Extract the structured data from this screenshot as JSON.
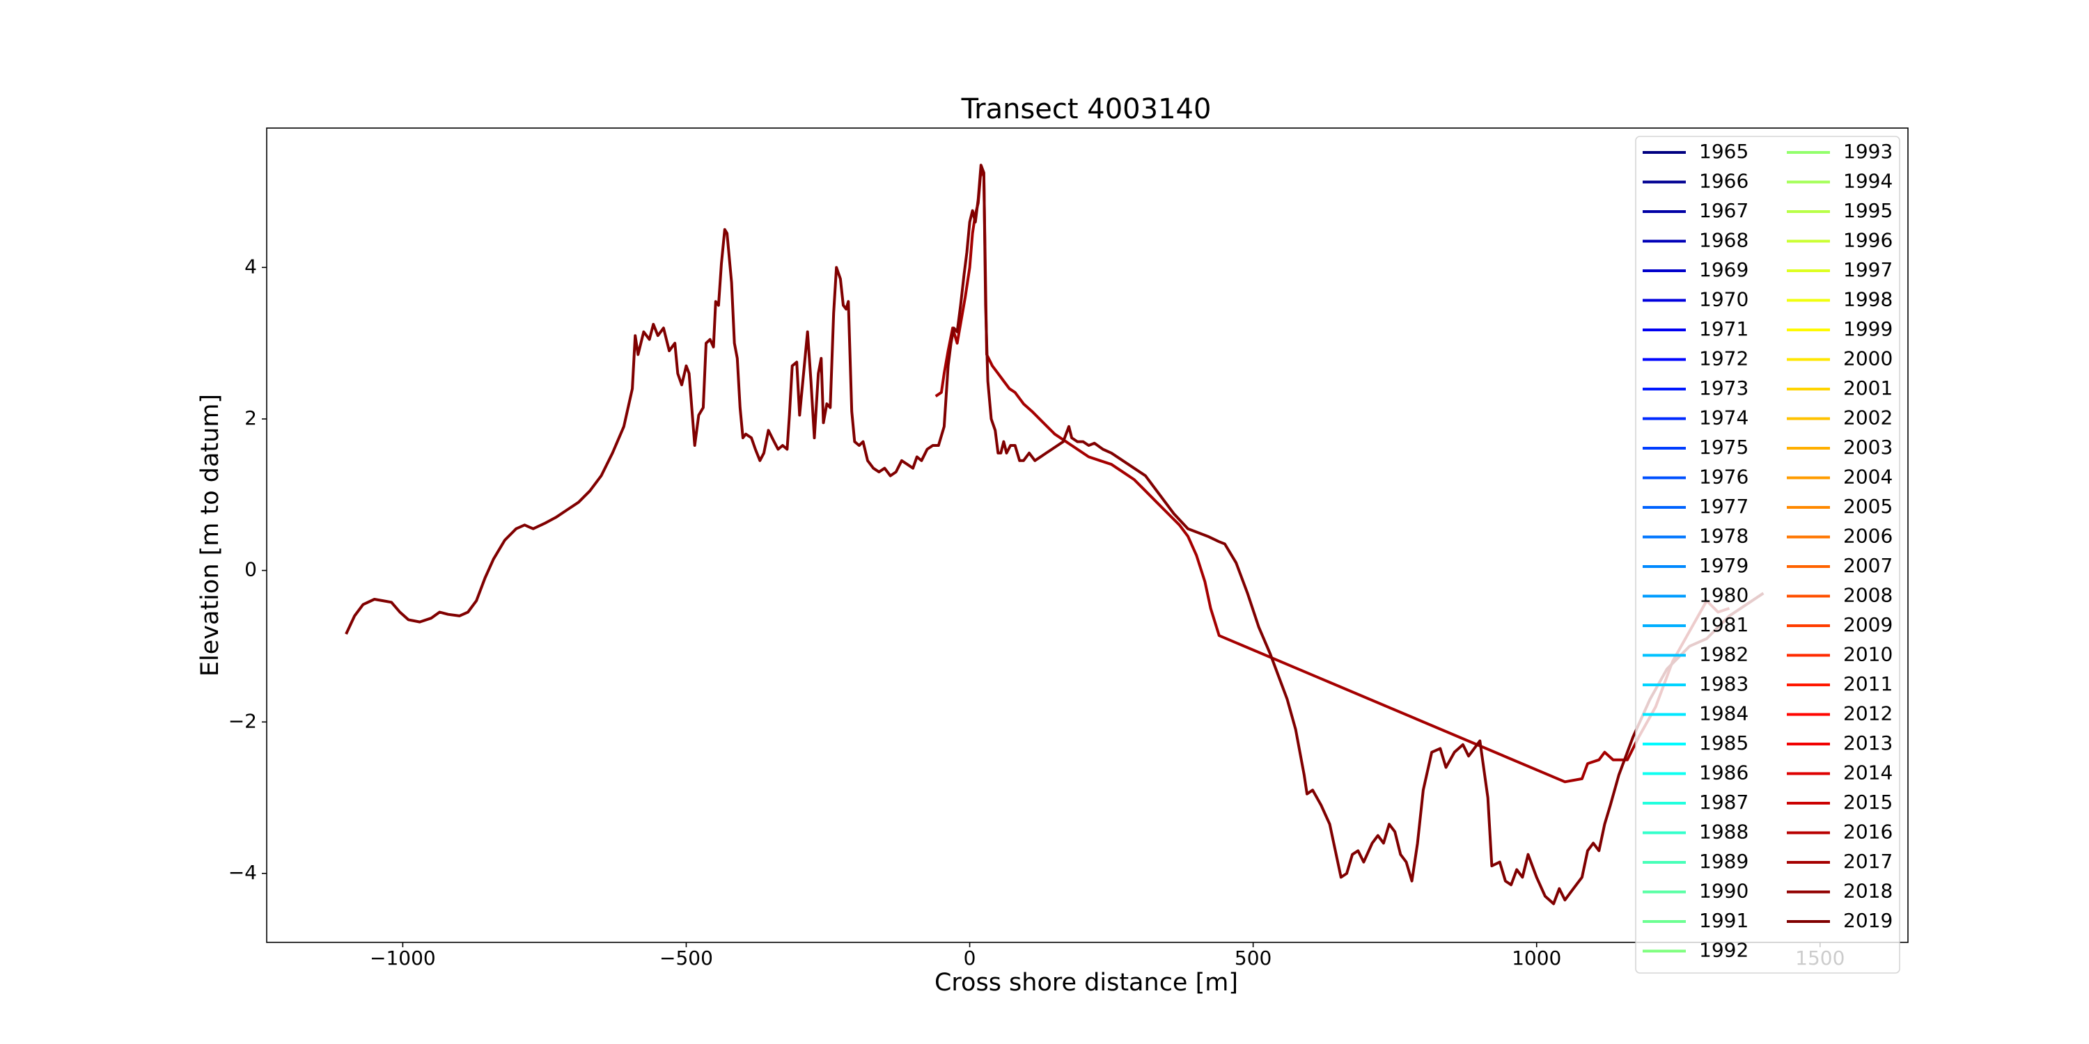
{
  "chart_data": {
    "type": "line",
    "title": "Transect 4003140",
    "x_label": "Cross shore distance [m]",
    "y_label": "Elevation [m to datum]",
    "xlim": [
      -1240,
      1655
    ],
    "ylim": [
      -4.91,
      5.84
    ],
    "xticks": [
      {
        "value": -1000,
        "label": "−1000"
      },
      {
        "value": -500,
        "label": "−500"
      },
      0,
      500,
      1000,
      1500
    ],
    "yticks": [
      {
        "value": -4,
        "label": "−4"
      },
      {
        "value": -2,
        "label": "−2"
      },
      0,
      2,
      4
    ],
    "legend_position": "upper right",
    "legend_columns": 2,
    "grid": false,
    "series": [
      {
        "name": "1965",
        "color": "#000080",
        "x": [],
        "values": []
      },
      {
        "name": "1966",
        "color": "#000092",
        "x": [],
        "values": []
      },
      {
        "name": "1967",
        "color": "#0000a5",
        "x": [],
        "values": []
      },
      {
        "name": "1968",
        "color": "#0000b8",
        "x": [],
        "values": []
      },
      {
        "name": "1969",
        "color": "#0000cb",
        "x": [],
        "values": []
      },
      {
        "name": "1970",
        "color": "#0000de",
        "x": [],
        "values": []
      },
      {
        "name": "1971",
        "color": "#0000f1",
        "x": [],
        "values": []
      },
      {
        "name": "1972",
        "color": "#0005ff",
        "x": [],
        "values": []
      },
      {
        "name": "1973",
        "color": "#0018ff",
        "x": [],
        "values": []
      },
      {
        "name": "1974",
        "color": "#002aff",
        "x": [],
        "values": []
      },
      {
        "name": "1975",
        "color": "#003dff",
        "x": [],
        "values": []
      },
      {
        "name": "1976",
        "color": "#0050ff",
        "x": [],
        "values": []
      },
      {
        "name": "1977",
        "color": "#0063ff",
        "x": [],
        "values": []
      },
      {
        "name": "1978",
        "color": "#0076ff",
        "x": [],
        "values": []
      },
      {
        "name": "1979",
        "color": "#0089ff",
        "x": [],
        "values": []
      },
      {
        "name": "1980",
        "color": "#009cff",
        "x": [],
        "values": []
      },
      {
        "name": "1981",
        "color": "#00afff",
        "x": [],
        "values": []
      },
      {
        "name": "1982",
        "color": "#00c2ff",
        "x": [],
        "values": []
      },
      {
        "name": "1983",
        "color": "#00d4ff",
        "x": [],
        "values": []
      },
      {
        "name": "1984",
        "color": "#00e7ff",
        "x": [],
        "values": []
      },
      {
        "name": "1985",
        "color": "#00faff",
        "x": [],
        "values": []
      },
      {
        "name": "1986",
        "color": "#0efff1",
        "x": [],
        "values": []
      },
      {
        "name": "1987",
        "color": "#21ffde",
        "x": [],
        "values": []
      },
      {
        "name": "1988",
        "color": "#34ffcb",
        "x": [],
        "values": []
      },
      {
        "name": "1989",
        "color": "#47ffb8",
        "x": [],
        "values": []
      },
      {
        "name": "1990",
        "color": "#5affa5",
        "x": [],
        "values": []
      },
      {
        "name": "1991",
        "color": "#6cff92",
        "x": [],
        "values": []
      },
      {
        "name": "1992",
        "color": "#80ff80",
        "x": [],
        "values": []
      },
      {
        "name": "1993",
        "color": "#92ff6c",
        "x": [],
        "values": []
      },
      {
        "name": "1994",
        "color": "#a5ff5a",
        "x": [],
        "values": []
      },
      {
        "name": "1995",
        "color": "#b8ff47",
        "x": [],
        "values": []
      },
      {
        "name": "1996",
        "color": "#cbff34",
        "x": [],
        "values": []
      },
      {
        "name": "1997",
        "color": "#deff21",
        "x": [],
        "values": []
      },
      {
        "name": "1998",
        "color": "#f1ff0e",
        "x": [],
        "values": []
      },
      {
        "name": "1999",
        "color": "#fffa00",
        "x": [],
        "values": []
      },
      {
        "name": "2000",
        "color": "#ffe700",
        "x": [],
        "values": []
      },
      {
        "name": "2001",
        "color": "#ffd400",
        "x": [],
        "values": []
      },
      {
        "name": "2002",
        "color": "#ffc200",
        "x": [],
        "values": []
      },
      {
        "name": "2003",
        "color": "#ffaf00",
        "x": [],
        "values": []
      },
      {
        "name": "2004",
        "color": "#ff9c00",
        "x": [],
        "values": []
      },
      {
        "name": "2005",
        "color": "#ff8900",
        "x": [],
        "values": []
      },
      {
        "name": "2006",
        "color": "#ff7600",
        "x": [],
        "values": []
      },
      {
        "name": "2007",
        "color": "#ff6300",
        "x": [],
        "values": []
      },
      {
        "name": "2008",
        "color": "#ff5000",
        "x": [],
        "values": []
      },
      {
        "name": "2009",
        "color": "#ff3d00",
        "x": [],
        "values": []
      },
      {
        "name": "2010",
        "color": "#ff2a00",
        "x": [],
        "values": []
      },
      {
        "name": "2011",
        "color": "#ff1800",
        "x": [],
        "values": []
      },
      {
        "name": "2012",
        "color": "#ff0500",
        "x": [],
        "values": []
      },
      {
        "name": "2013",
        "color": "#f10000",
        "x": [],
        "values": []
      },
      {
        "name": "2014",
        "color": "#de0000",
        "x": [],
        "values": []
      },
      {
        "name": "2015",
        "color": "#cb0000",
        "x": [],
        "values": []
      },
      {
        "name": "2016",
        "color": "#b80000",
        "x": [],
        "values": []
      },
      {
        "name": "2017",
        "color": "#a50000",
        "x": [
          -60,
          -50,
          -45,
          -38,
          -30,
          -22,
          -15,
          -8,
          0,
          5,
          10,
          15,
          20,
          25,
          30,
          40,
          50,
          60,
          70,
          80,
          95,
          110,
          130,
          150,
          170,
          190,
          210,
          230,
          250,
          270,
          290,
          310,
          330,
          350,
          370,
          385,
          400,
          415,
          425,
          440,
          1050,
          1080,
          1090,
          1110,
          1120,
          1135,
          1160,
          1180,
          1210,
          1240,
          1270,
          1300,
          1320,
          1340
        ],
        "values": [
          2.3,
          2.35,
          2.6,
          2.9,
          3.2,
          3.0,
          3.3,
          3.6,
          4.0,
          4.45,
          4.7,
          4.85,
          5.3,
          5.2,
          2.85,
          2.7,
          2.6,
          2.5,
          2.4,
          2.35,
          2.2,
          2.1,
          1.95,
          1.8,
          1.7,
          1.6,
          1.5,
          1.45,
          1.4,
          1.3,
          1.2,
          1.05,
          0.9,
          0.75,
          0.6,
          0.45,
          0.2,
          -0.15,
          -0.5,
          -0.86,
          -2.79,
          -2.75,
          -2.55,
          -2.5,
          -2.4,
          -2.5,
          -2.5,
          -2.2,
          -1.8,
          -1.2,
          -0.8,
          -0.4,
          -0.55,
          -0.5
        ]
      },
      {
        "name": "2018",
        "color": "#920000",
        "x": [],
        "values": []
      },
      {
        "name": "2019",
        "color": "#800000",
        "x": [
          -1100,
          -1085,
          -1070,
          -1050,
          -1035,
          -1020,
          -1005,
          -990,
          -970,
          -950,
          -935,
          -920,
          -900,
          -885,
          -870,
          -855,
          -840,
          -820,
          -800,
          -785,
          -770,
          -750,
          -730,
          -710,
          -690,
          -670,
          -650,
          -630,
          -610,
          -595,
          -590,
          -585,
          -575,
          -565,
          -558,
          -550,
          -540,
          -530,
          -520,
          -515,
          -508,
          -500,
          -495,
          -485,
          -478,
          -470,
          -465,
          -458,
          -452,
          -448,
          -443,
          -438,
          -432,
          -428,
          -420,
          -415,
          -410,
          -405,
          -400,
          -395,
          -385,
          -378,
          -370,
          -363,
          -355,
          -345,
          -338,
          -330,
          -322,
          -318,
          -313,
          -305,
          -300,
          -293,
          -286,
          -280,
          -274,
          -267,
          -262,
          -258,
          -252,
          -246,
          -240,
          -235,
          -228,
          -223,
          -218,
          -214,
          -208,
          -203,
          -195,
          -188,
          -180,
          -170,
          -160,
          -150,
          -140,
          -130,
          -120,
          -110,
          -100,
          -93,
          -85,
          -75,
          -65,
          -55,
          -45,
          -38,
          -33,
          -28,
          -22,
          -16,
          -10,
          -5,
          0,
          5,
          10,
          15,
          20,
          25,
          28,
          32,
          38,
          45,
          50,
          55,
          60,
          65,
          72,
          80,
          88,
          95,
          105,
          115,
          125,
          135,
          145,
          155,
          165,
          175,
          180,
          190,
          200,
          210,
          220,
          235,
          250,
          270,
          290,
          310,
          340,
          360,
          385,
          420,
          440,
          450,
          470,
          490,
          510,
          530,
          545,
          560,
          575,
          590,
          595,
          605,
          620,
          635,
          645,
          655,
          665,
          675,
          685,
          695,
          710,
          720,
          730,
          740,
          750,
          760,
          770,
          780,
          790,
          800,
          815,
          830,
          840,
          855,
          870,
          880,
          900,
          914,
          921,
          935,
          945,
          955,
          965,
          975,
          985,
          1000,
          1015,
          1030,
          1040,
          1050,
          1065,
          1080,
          1090,
          1100,
          1110,
          1120,
          1130,
          1145,
          1170,
          1200,
          1230,
          1270,
          1300,
          1340,
          1370,
          1400
        ],
        "values": [
          -0.84,
          -0.6,
          -0.45,
          -0.38,
          -0.4,
          -0.42,
          -0.55,
          -0.65,
          -0.68,
          -0.63,
          -0.55,
          -0.58,
          -0.6,
          -0.55,
          -0.4,
          -0.1,
          0.15,
          0.4,
          0.55,
          0.6,
          0.55,
          0.62,
          0.7,
          0.8,
          0.9,
          1.05,
          1.25,
          1.55,
          1.9,
          2.4,
          3.1,
          2.85,
          3.15,
          3.05,
          3.25,
          3.1,
          3.2,
          2.9,
          3.0,
          2.6,
          2.45,
          2.7,
          2.6,
          1.65,
          2.05,
          2.15,
          3.0,
          3.05,
          2.95,
          3.55,
          3.5,
          4.05,
          4.5,
          4.45,
          3.8,
          3.0,
          2.8,
          2.15,
          1.75,
          1.8,
          1.75,
          1.6,
          1.45,
          1.55,
          1.85,
          1.7,
          1.6,
          1.65,
          1.6,
          2.05,
          2.7,
          2.75,
          2.05,
          2.6,
          3.15,
          2.5,
          1.75,
          2.6,
          2.8,
          1.95,
          2.2,
          2.15,
          3.4,
          4.0,
          3.85,
          3.5,
          3.45,
          3.55,
          2.1,
          1.7,
          1.65,
          1.7,
          1.45,
          1.35,
          1.3,
          1.35,
          1.25,
          1.3,
          1.45,
          1.4,
          1.35,
          1.5,
          1.45,
          1.6,
          1.65,
          1.65,
          1.9,
          2.7,
          3.0,
          3.2,
          3.15,
          3.5,
          3.9,
          4.2,
          4.6,
          4.75,
          4.6,
          4.9,
          5.35,
          5.25,
          3.5,
          2.5,
          2.0,
          1.85,
          1.55,
          1.55,
          1.7,
          1.55,
          1.65,
          1.65,
          1.45,
          1.45,
          1.55,
          1.45,
          1.5,
          1.55,
          1.6,
          1.65,
          1.7,
          1.9,
          1.75,
          1.7,
          1.7,
          1.65,
          1.68,
          1.6,
          1.55,
          1.45,
          1.35,
          1.25,
          0.95,
          0.75,
          0.55,
          0.45,
          0.38,
          0.35,
          0.1,
          -0.3,
          -0.75,
          -1.1,
          -1.4,
          -1.7,
          -2.1,
          -2.7,
          -2.95,
          -2.9,
          -3.1,
          -3.35,
          -3.7,
          -4.05,
          -4.0,
          -3.75,
          -3.7,
          -3.85,
          -3.6,
          -3.5,
          -3.6,
          -3.35,
          -3.45,
          -3.75,
          -3.85,
          -4.1,
          -3.6,
          -2.9,
          -2.4,
          -2.35,
          -2.6,
          -2.4,
          -2.3,
          -2.45,
          -2.25,
          -3.0,
          -3.9,
          -3.85,
          -4.1,
          -4.15,
          -3.95,
          -4.05,
          -3.75,
          -4.05,
          -4.3,
          -4.4,
          -4.2,
          -4.35,
          -4.2,
          -4.05,
          -3.7,
          -3.6,
          -3.7,
          -3.35,
          -3.1,
          -2.7,
          -2.2,
          -1.7,
          -1.3,
          -1.0,
          -0.9,
          -0.6,
          -0.45,
          -0.3
        ]
      }
    ]
  }
}
